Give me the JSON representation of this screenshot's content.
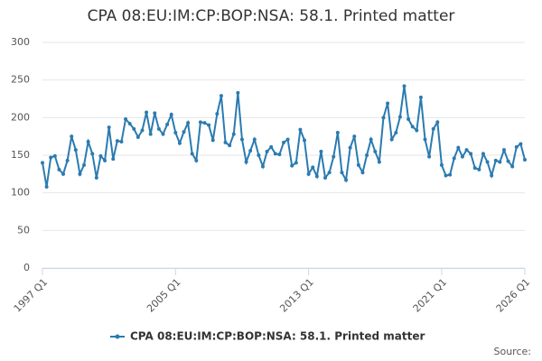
{
  "chart_data": {
    "type": "line",
    "title": "CPA 08:EU:IM:CP:BOP:NSA: 58.1. Printed matter",
    "source_label": "Source:",
    "categories": [
      "1997 Q1",
      null,
      null,
      null,
      null,
      null,
      null,
      null,
      null,
      null,
      null,
      null,
      null,
      null,
      null,
      null,
      null,
      null,
      null,
      null,
      null,
      null,
      null,
      null,
      null,
      null,
      null,
      null,
      null,
      null,
      null,
      null,
      "2005 Q1",
      null,
      null,
      null,
      null,
      null,
      null,
      null,
      null,
      null,
      null,
      null,
      null,
      null,
      null,
      null,
      null,
      null,
      null,
      null,
      null,
      null,
      null,
      null,
      null,
      null,
      null,
      null,
      null,
      null,
      null,
      null,
      "2013 Q1",
      null,
      null,
      null,
      null,
      null,
      null,
      null,
      null,
      null,
      null,
      null,
      null,
      null,
      null,
      null,
      null,
      null,
      null,
      null,
      null,
      null,
      null,
      null,
      null,
      null,
      null,
      null,
      null,
      null,
      null,
      null,
      "2021 Q1",
      null,
      null,
      null,
      null,
      null,
      null,
      null,
      null,
      null,
      null,
      null,
      null,
      null,
      null,
      null,
      null,
      null,
      null,
      null,
      "2026 Q1"
    ],
    "series": [
      {
        "name": "CPA 08:EU:IM:CP:BOP:NSA: 58.1. Printed matter",
        "color": "#2b7bb0",
        "values": [
          140,
          108,
          147,
          149,
          131,
          125,
          143,
          175,
          157,
          125,
          137,
          168,
          152,
          120,
          149,
          143,
          187,
          145,
          169,
          168,
          198,
          192,
          185,
          174,
          183,
          207,
          178,
          206,
          185,
          178,
          191,
          204,
          180,
          166,
          181,
          193,
          152,
          143,
          194,
          193,
          190,
          170,
          205,
          229,
          167,
          163,
          178,
          233,
          171,
          141,
          156,
          171,
          150,
          135,
          155,
          161,
          152,
          151,
          167,
          171,
          136,
          140,
          184,
          170,
          125,
          134,
          122,
          155,
          120,
          127,
          148,
          180,
          127,
          117,
          160,
          175,
          137,
          127,
          150,
          171,
          155,
          141,
          200,
          219,
          171,
          180,
          201,
          242,
          198,
          188,
          183,
          227,
          171,
          148,
          185,
          194,
          137,
          123,
          124,
          146,
          160,
          148,
          157,
          152,
          133,
          131,
          152,
          141,
          123,
          143,
          141,
          157,
          142,
          135,
          161,
          165,
          144
        ]
      }
    ],
    "ylim": [
      0,
      300
    ],
    "yticks": [
      0,
      50,
      100,
      150,
      200,
      250,
      300
    ],
    "grid": true
  }
}
